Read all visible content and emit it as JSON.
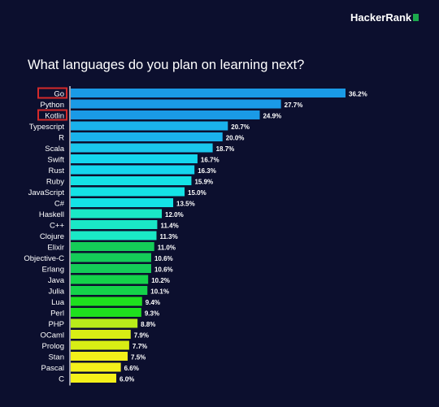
{
  "brand": {
    "name": "HackerRank"
  },
  "chart_data": {
    "type": "bar",
    "orientation": "horizontal",
    "title": "What languages do you plan on learning next?",
    "value_suffix": "%",
    "categories": [
      "Go",
      "Python",
      "Kotlin",
      "Typescript",
      "R",
      "Scala",
      "Swift",
      "Rust",
      "Ruby",
      "JavaScript",
      "C#",
      "Haskell",
      "C++",
      "Clojure",
      "Elixir",
      "Objective-C",
      "Erlang",
      "Java",
      "Julia",
      "Lua",
      "Perl",
      "PHP",
      "OCaml",
      "Prolog",
      "Stan",
      "Pascal",
      "C"
    ],
    "values": [
      36.2,
      27.7,
      24.9,
      20.7,
      20.0,
      18.7,
      16.7,
      16.3,
      15.9,
      15.0,
      13.5,
      12.0,
      11.4,
      11.3,
      11.0,
      10.6,
      10.6,
      10.2,
      10.1,
      9.4,
      9.3,
      8.8,
      7.9,
      7.7,
      7.5,
      6.6,
      6.0
    ],
    "value_labels": [
      "36.2%",
      "27.7%",
      "24.9%",
      "20.7%",
      "20.0%",
      "18.7%",
      "16.7%",
      "16.3%",
      "15.9%",
      "15.0%",
      "13.5%",
      "12.0%",
      "11.4%",
      "11.3%",
      "11.0%",
      "10.6%",
      "10.6%",
      "10.2%",
      "10.1%",
      "9.4%",
      "9.3%",
      "8.8%",
      "7.9%",
      "7.7%",
      "7.5%",
      "6.6%",
      "6.0%"
    ],
    "highlighted": [
      "Go",
      "Kotlin"
    ],
    "bar_colors": [
      "#1a9ae6",
      "#1a9ae6",
      "#1a9ae6",
      "#1ab2ec",
      "#1ab2ec",
      "#1ac6ec",
      "#14d6ee",
      "#14d6ee",
      "#14e2e6",
      "#14e2e6",
      "#14e2e6",
      "#1ae8c6",
      "#1ae8c6",
      "#1ae8c6",
      "#14cc58",
      "#14cc58",
      "#14cc58",
      "#14d24a",
      "#14d24a",
      "#1ee01e",
      "#1ee01e",
      "#b8ec1a",
      "#d8ee14",
      "#d8ee14",
      "#f4f01a",
      "#f4f01a",
      "#f4f01a"
    ],
    "colors": {
      "highlight_box": "#d42a2a",
      "axis": "#ffffff",
      "label_text": "#ffffff"
    },
    "grid": false,
    "legend": "none"
  }
}
